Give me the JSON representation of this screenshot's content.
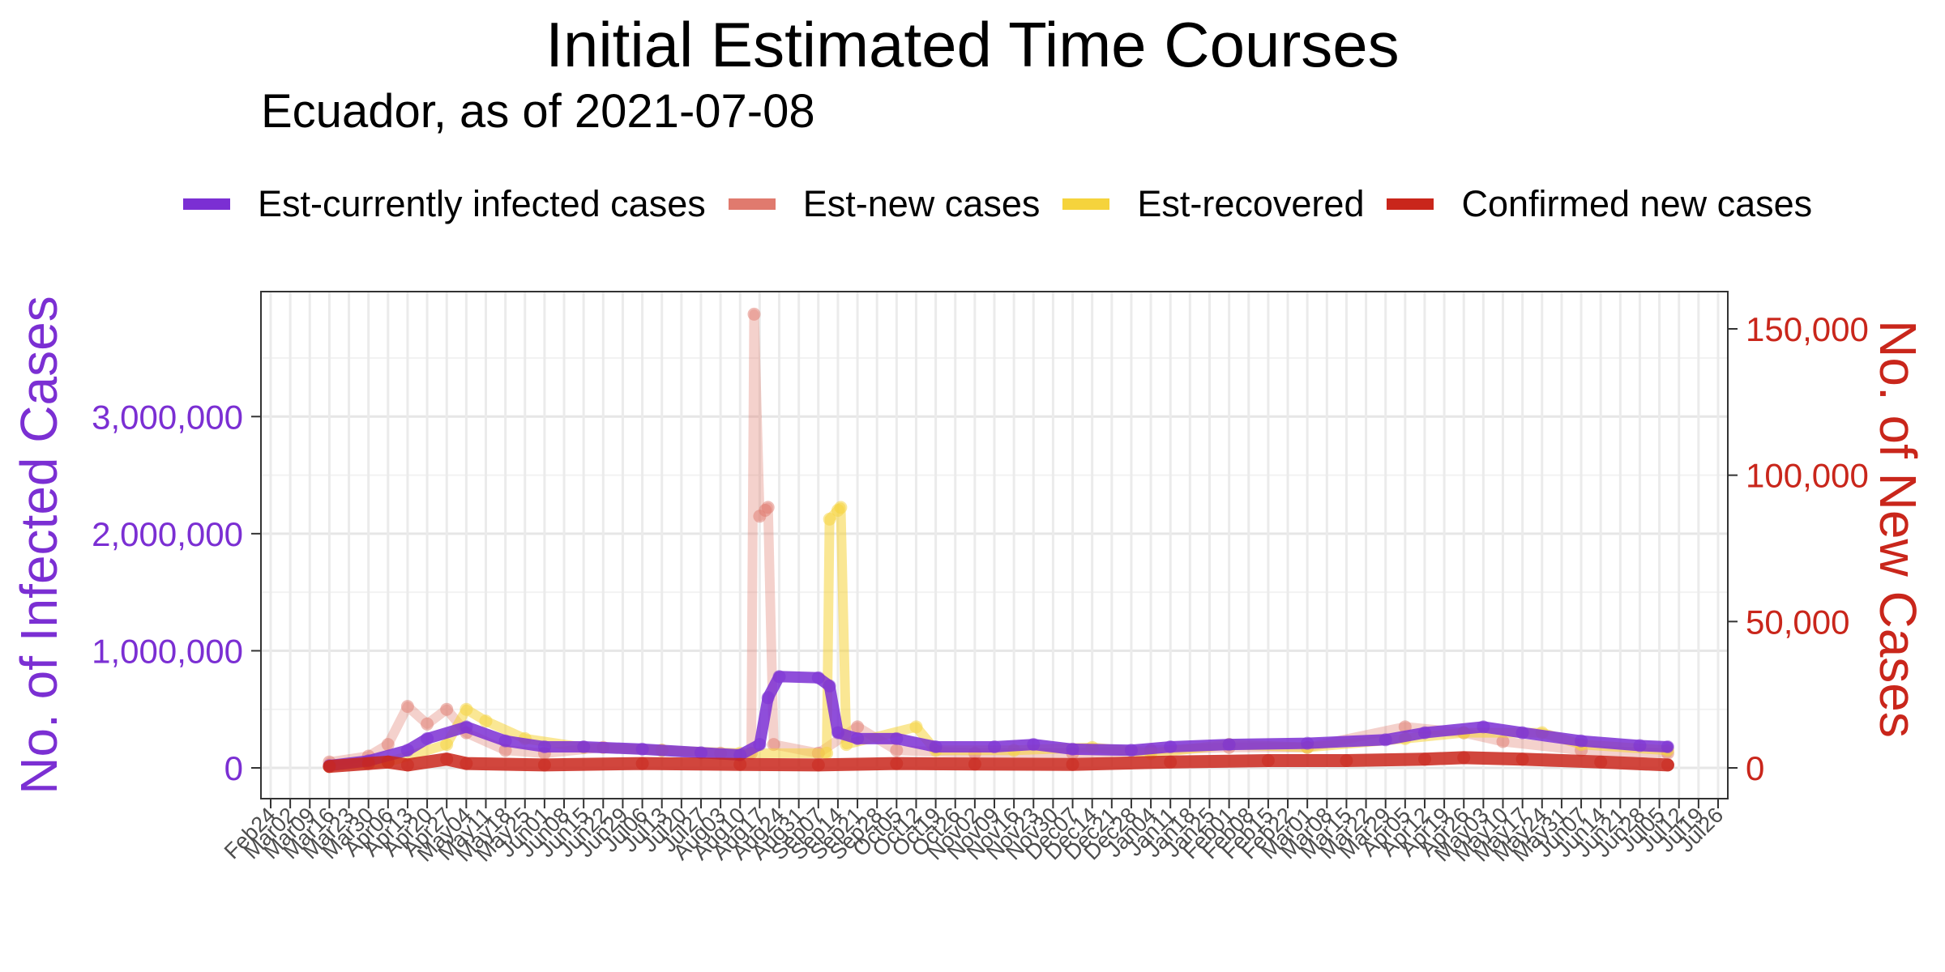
{
  "chart_data": {
    "type": "line",
    "title": "Initial Estimated Time Courses",
    "subtitle": "Ecuador, as of 2021-07-08",
    "ylabel_left": "No. of Infected Cases",
    "ylabel_right": "No. of New Cases",
    "ylim_left": [
      0,
      3500000
    ],
    "ylim_right": [
      0,
      150000
    ],
    "left_ticks": [
      "0",
      "1,000,000",
      "2,000,000",
      "3,000,000"
    ],
    "right_ticks": [
      "0",
      "50,000",
      "100,000",
      "150,000"
    ],
    "x_tick_labels": [
      "Feb24",
      "Mar02",
      "Mar09",
      "Mar16",
      "Mar23",
      "Mar30",
      "Apr06",
      "Apr13",
      "Apr20",
      "Apr27",
      "May04",
      "May11",
      "May18",
      "May25",
      "Jun01",
      "Jun08",
      "Jun15",
      "Jun22",
      "Jun29",
      "Jul06",
      "Jul13",
      "Jul20",
      "Jul27",
      "Aug03",
      "Aug10",
      "Aug17",
      "Aug24",
      "Aug31",
      "Sep07",
      "Sep14",
      "Sep21",
      "Sep28",
      "Oct05",
      "Oct12",
      "Oct19",
      "Oct26",
      "Nov02",
      "Nov09",
      "Nov16",
      "Nov23",
      "Nov30",
      "Dec07",
      "Dec14",
      "Dec21",
      "Dec28",
      "Jan04",
      "Jan11",
      "Jan18",
      "Jan25",
      "Feb01",
      "Feb08",
      "Feb15",
      "Feb22",
      "Mar01",
      "Mar08",
      "Mar15",
      "Mar22",
      "Mar29",
      "Apr05",
      "Apr12",
      "Apr19",
      "Apr26",
      "May03",
      "May10",
      "May17",
      "May24",
      "May31",
      "Jun07",
      "Jun14",
      "Jun21",
      "Jun28",
      "Jul05",
      "Jul12",
      "Jul19",
      "Jul26"
    ],
    "x_range": [
      "2020-02-24",
      "2021-07-26"
    ],
    "grid": true,
    "legend_position": "top",
    "series": [
      {
        "name": "Est-currently infected cases",
        "axis": "left",
        "color": "#7B2FD3",
        "points": [
          [
            "2020-03-16",
            20000
          ],
          [
            "2020-03-30",
            60000
          ],
          [
            "2020-04-13",
            150000
          ],
          [
            "2020-04-20",
            250000
          ],
          [
            "2020-05-04",
            350000
          ],
          [
            "2020-05-18",
            230000
          ],
          [
            "2020-06-01",
            180000
          ],
          [
            "2020-06-15",
            180000
          ],
          [
            "2020-07-06",
            160000
          ],
          [
            "2020-07-27",
            130000
          ],
          [
            "2020-08-10",
            110000
          ],
          [
            "2020-08-17",
            200000
          ],
          [
            "2020-08-20",
            600000
          ],
          [
            "2020-08-24",
            780000
          ],
          [
            "2020-09-07",
            770000
          ],
          [
            "2020-09-11",
            700000
          ],
          [
            "2020-09-14",
            300000
          ],
          [
            "2020-09-21",
            250000
          ],
          [
            "2020-10-05",
            250000
          ],
          [
            "2020-10-19",
            180000
          ],
          [
            "2020-11-09",
            180000
          ],
          [
            "2020-11-23",
            200000
          ],
          [
            "2020-12-07",
            160000
          ],
          [
            "2020-12-28",
            150000
          ],
          [
            "2021-01-11",
            180000
          ],
          [
            "2021-02-01",
            200000
          ],
          [
            "2021-03-01",
            210000
          ],
          [
            "2021-03-29",
            240000
          ],
          [
            "2021-04-12",
            300000
          ],
          [
            "2021-05-03",
            350000
          ],
          [
            "2021-05-17",
            300000
          ],
          [
            "2021-06-07",
            230000
          ],
          [
            "2021-06-28",
            190000
          ],
          [
            "2021-07-08",
            180000
          ]
        ]
      },
      {
        "name": "Est-new cases",
        "axis": "right",
        "color": "#E07A6E",
        "points": [
          [
            "2020-03-16",
            2000
          ],
          [
            "2020-03-30",
            4000
          ],
          [
            "2020-04-06",
            8000
          ],
          [
            "2020-04-13",
            21000
          ],
          [
            "2020-04-20",
            15000
          ],
          [
            "2020-04-27",
            20000
          ],
          [
            "2020-05-04",
            12000
          ],
          [
            "2020-05-18",
            6000
          ],
          [
            "2020-06-01",
            5000
          ],
          [
            "2020-06-22",
            7000
          ],
          [
            "2020-07-13",
            6000
          ],
          [
            "2020-08-03",
            5000
          ],
          [
            "2020-08-14",
            5000
          ],
          [
            "2020-08-15",
            155000
          ],
          [
            "2020-08-17",
            86000
          ],
          [
            "2020-08-19",
            88000
          ],
          [
            "2020-08-20",
            89000
          ],
          [
            "2020-08-22",
            8000
          ],
          [
            "2020-09-07",
            5000
          ],
          [
            "2020-09-21",
            14000
          ],
          [
            "2020-10-05",
            6000
          ],
          [
            "2020-11-02",
            5000
          ],
          [
            "2020-12-07",
            5000
          ],
          [
            "2021-01-04",
            6000
          ],
          [
            "2021-02-01",
            7000
          ],
          [
            "2021-03-01",
            7000
          ],
          [
            "2021-04-05",
            14000
          ],
          [
            "2021-04-26",
            12000
          ],
          [
            "2021-05-10",
            9000
          ],
          [
            "2021-06-07",
            6000
          ],
          [
            "2021-07-08",
            5000
          ]
        ]
      },
      {
        "name": "Est-recovered",
        "axis": "right",
        "color": "#F5D33C",
        "points": [
          [
            "2020-03-16",
            500
          ],
          [
            "2020-04-06",
            2000
          ],
          [
            "2020-04-27",
            8000
          ],
          [
            "2020-05-04",
            20000
          ],
          [
            "2020-05-11",
            16000
          ],
          [
            "2020-05-25",
            10000
          ],
          [
            "2020-06-15",
            7000
          ],
          [
            "2020-07-13",
            6000
          ],
          [
            "2020-08-10",
            5000
          ],
          [
            "2020-09-10",
            5000
          ],
          [
            "2020-09-11",
            85000
          ],
          [
            "2020-09-14",
            88000
          ],
          [
            "2020-09-15",
            89000
          ],
          [
            "2020-09-17",
            8000
          ],
          [
            "2020-10-12",
            14000
          ],
          [
            "2020-10-19",
            6000
          ],
          [
            "2020-11-16",
            6000
          ],
          [
            "2020-12-14",
            7000
          ],
          [
            "2021-01-04",
            5000
          ],
          [
            "2021-02-01",
            8000
          ],
          [
            "2021-03-01",
            7000
          ],
          [
            "2021-04-05",
            10000
          ],
          [
            "2021-04-26",
            12000
          ],
          [
            "2021-05-24",
            12000
          ],
          [
            "2021-06-07",
            8000
          ],
          [
            "2021-07-08",
            6000
          ]
        ]
      },
      {
        "name": "Confirmed new cases",
        "axis": "right",
        "color": "#C9261B",
        "points": [
          [
            "2020-03-16",
            500
          ],
          [
            "2020-03-30",
            1500
          ],
          [
            "2020-04-06",
            2000
          ],
          [
            "2020-04-13",
            1000
          ],
          [
            "2020-04-27",
            3000
          ],
          [
            "2020-05-04",
            1500
          ],
          [
            "2020-06-01",
            1000
          ],
          [
            "2020-07-06",
            1500
          ],
          [
            "2020-08-10",
            1200
          ],
          [
            "2020-09-07",
            1000
          ],
          [
            "2020-10-05",
            1500
          ],
          [
            "2020-11-02",
            1300
          ],
          [
            "2020-12-07",
            1200
          ],
          [
            "2021-01-11",
            2000
          ],
          [
            "2021-02-15",
            2500
          ],
          [
            "2021-03-15",
            2500
          ],
          [
            "2021-04-12",
            3000
          ],
          [
            "2021-04-26",
            3500
          ],
          [
            "2021-05-17",
            3000
          ],
          [
            "2021-06-14",
            2000
          ],
          [
            "2021-07-08",
            1000
          ]
        ]
      }
    ]
  }
}
